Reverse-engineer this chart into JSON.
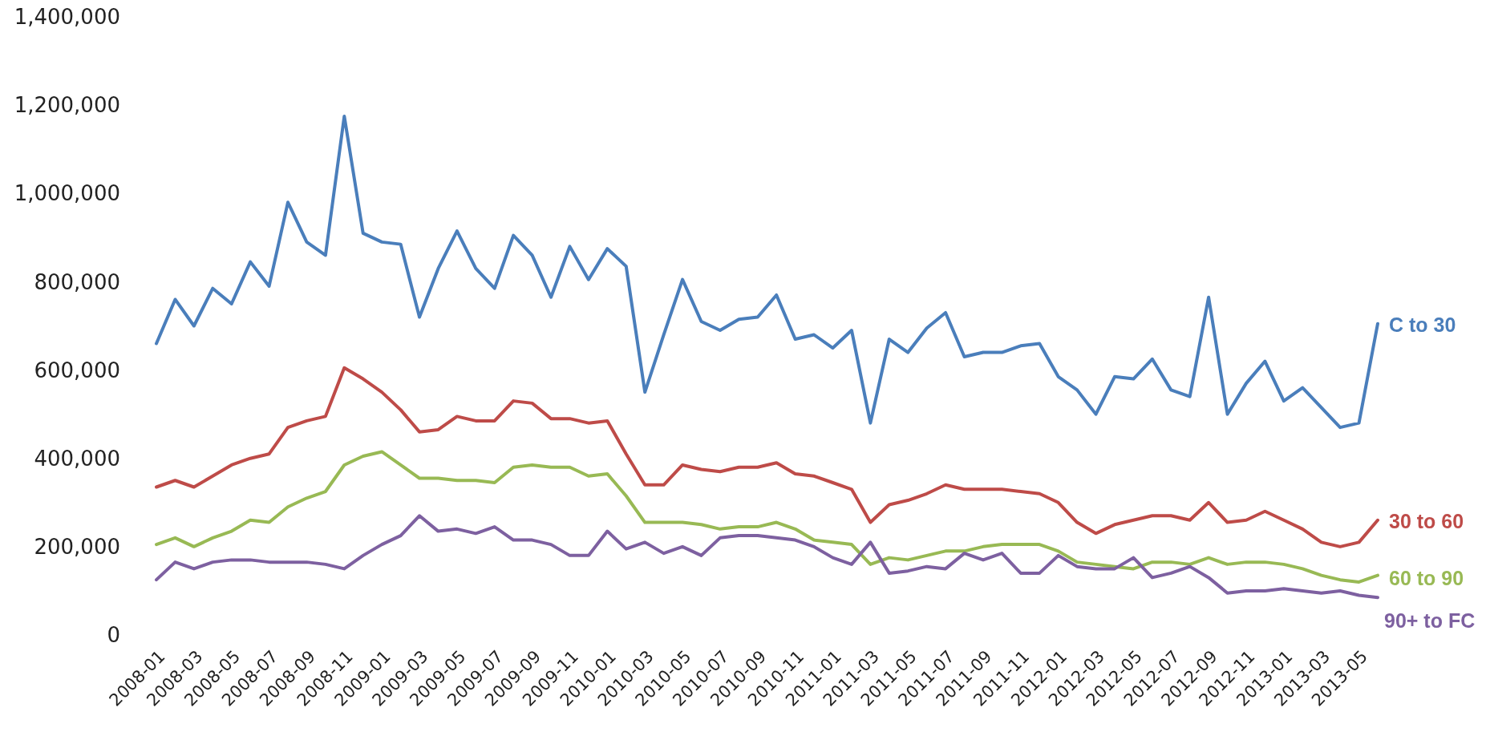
{
  "chart_data": {
    "type": "line",
    "categories": [
      "2008-01",
      null,
      "2008-03",
      null,
      "2008-05",
      null,
      "2008-07",
      null,
      "2008-09",
      null,
      "2008-11",
      null,
      "2009-01",
      null,
      "2009-03",
      null,
      "2009-05",
      null,
      "2009-07",
      null,
      "2009-09",
      null,
      "2009-11",
      null,
      "2010-01",
      null,
      "2010-03",
      null,
      "2010-05",
      null,
      "2010-07",
      null,
      "2010-09",
      null,
      "2010-11",
      null,
      "2011-01",
      null,
      "2011-03",
      null,
      "2011-05",
      null,
      "2011-07",
      null,
      "2011-09",
      null,
      "2011-11",
      null,
      "2012-01",
      null,
      "2012-03",
      null,
      "2012-05",
      null,
      "2012-07",
      null,
      "2012-09",
      null,
      "2012-11",
      null,
      "2013-01",
      null,
      "2013-03",
      null,
      "2013-05",
      null
    ],
    "ylim": [
      0,
      1400000
    ],
    "yticks": [
      {
        "value": 0,
        "label": "0"
      },
      {
        "value": 200000,
        "label": "200,000"
      },
      {
        "value": 400000,
        "label": "400,000"
      },
      {
        "value": 600000,
        "label": "600,000"
      },
      {
        "value": 800000,
        "label": "800,000"
      },
      {
        "value": 1000000,
        "label": "1,000,000"
      },
      {
        "value": 1200000,
        "label": "1,200,000"
      },
      {
        "value": 1400000,
        "label": "1,400,000"
      }
    ],
    "grid": false,
    "marker": "none",
    "line_style": "solid",
    "series": [
      {
        "name": "C to 30",
        "color": "#4a7ebb",
        "values": [
          660000,
          760000,
          700000,
          785000,
          750000,
          845000,
          790000,
          980000,
          890000,
          860000,
          1175000,
          910000,
          890000,
          885000,
          720000,
          830000,
          915000,
          830000,
          785000,
          905000,
          860000,
          765000,
          880000,
          805000,
          875000,
          835000,
          550000,
          680000,
          805000,
          710000,
          690000,
          715000,
          720000,
          770000,
          670000,
          680000,
          650000,
          690000,
          480000,
          670000,
          640000,
          695000,
          730000,
          630000,
          640000,
          640000,
          655000,
          660000,
          585000,
          555000,
          500000,
          585000,
          580000,
          625000,
          555000,
          540000,
          765000,
          500000,
          570000,
          620000,
          530000,
          560000,
          515000,
          470000,
          480000,
          705000
        ]
      },
      {
        "name": "30 to 60",
        "color": "#be4b48",
        "values": [
          335000,
          350000,
          335000,
          360000,
          385000,
          400000,
          410000,
          470000,
          485000,
          495000,
          605000,
          580000,
          550000,
          510000,
          460000,
          465000,
          495000,
          485000,
          485000,
          530000,
          525000,
          490000,
          490000,
          480000,
          485000,
          410000,
          340000,
          340000,
          385000,
          375000,
          370000,
          380000,
          380000,
          390000,
          365000,
          360000,
          345000,
          330000,
          255000,
          295000,
          305000,
          320000,
          340000,
          330000,
          330000,
          330000,
          325000,
          320000,
          300000,
          255000,
          230000,
          250000,
          260000,
          270000,
          270000,
          260000,
          300000,
          255000,
          260000,
          280000,
          260000,
          240000,
          210000,
          200000,
          210000,
          260000
        ]
      },
      {
        "name": "60 to 90",
        "color": "#98b954",
        "values": [
          205000,
          220000,
          200000,
          220000,
          235000,
          260000,
          255000,
          290000,
          310000,
          325000,
          385000,
          405000,
          415000,
          385000,
          355000,
          355000,
          350000,
          350000,
          345000,
          380000,
          385000,
          380000,
          380000,
          360000,
          365000,
          315000,
          255000,
          255000,
          255000,
          250000,
          240000,
          245000,
          245000,
          255000,
          240000,
          215000,
          210000,
          205000,
          160000,
          175000,
          170000,
          180000,
          190000,
          190000,
          200000,
          205000,
          205000,
          205000,
          190000,
          165000,
          160000,
          155000,
          150000,
          165000,
          165000,
          160000,
          175000,
          160000,
          165000,
          165000,
          160000,
          150000,
          135000,
          125000,
          120000,
          135000
        ]
      },
      {
        "name": "90+ to FC",
        "color": "#7d60a0",
        "values": [
          125000,
          165000,
          150000,
          165000,
          170000,
          170000,
          165000,
          165000,
          165000,
          160000,
          150000,
          180000,
          205000,
          225000,
          270000,
          235000,
          240000,
          230000,
          245000,
          215000,
          215000,
          205000,
          180000,
          180000,
          235000,
          195000,
          210000,
          185000,
          200000,
          180000,
          220000,
          225000,
          225000,
          220000,
          215000,
          200000,
          175000,
          160000,
          210000,
          140000,
          145000,
          155000,
          150000,
          185000,
          170000,
          185000,
          140000,
          140000,
          180000,
          155000,
          150000,
          150000,
          175000,
          130000,
          140000,
          155000,
          130000,
          95000,
          100000,
          100000,
          105000,
          100000,
          95000,
          100000,
          90000,
          85000
        ]
      }
    ]
  }
}
